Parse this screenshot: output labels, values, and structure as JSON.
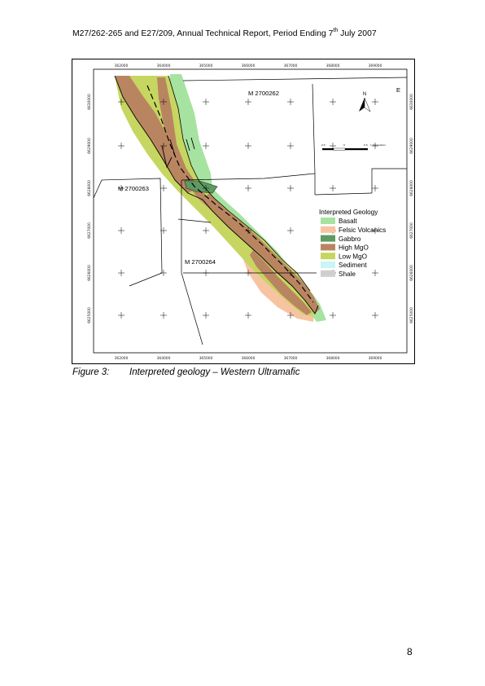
{
  "header": {
    "text_before_sup": "M27/262-265 and E27/209, Annual Technical Report, Period Ending 7",
    "sup": "th",
    "text_after_sup": " July 2007"
  },
  "figure": {
    "caption_label": "Figure 3:",
    "caption_text": "Interpreted geology – Western Ultramafic"
  },
  "map": {
    "eastings": [
      "362000",
      "364000",
      "365000",
      "366000",
      "367000",
      "368000",
      "369000"
    ],
    "northings": [
      "6630000",
      "6629000",
      "6628000",
      "6627000",
      "6626000",
      "6625000"
    ],
    "leases": [
      "M 2700262",
      "M 2700263",
      "M 2700264"
    ],
    "edge_letter": "E",
    "north_label": "N",
    "scale_labels": [
      "0.5",
      "0",
      "0.5",
      "1 Kilometers"
    ],
    "legend": {
      "title": "Interpreted Geology",
      "items": [
        {
          "label": "Basalt",
          "color": "#a6e3a1"
        },
        {
          "label": "Felsic Volcanics",
          "color": "#f7c4a2"
        },
        {
          "label": "Gabbro",
          "color": "#5e9a62"
        },
        {
          "label": "High MgO",
          "color": "#b98561"
        },
        {
          "label": "Low MgO",
          "color": "#c6d660"
        },
        {
          "label": "Sediment",
          "color": "#c9f5f6"
        },
        {
          "label": "Shale",
          "color": "#cfcfcf"
        }
      ]
    }
  },
  "page_number": "8"
}
